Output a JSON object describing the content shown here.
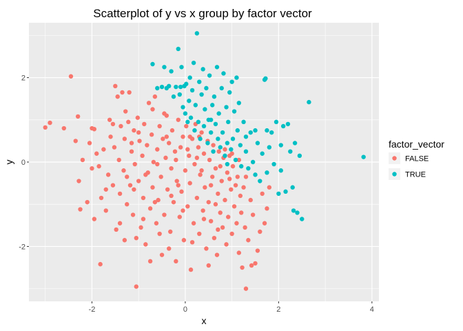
{
  "chart_data": {
    "type": "scatter",
    "title": "Scatterplot of y vs x group by factor vector",
    "xlabel": "x",
    "ylabel": "y",
    "xlim": [
      -3.35,
      4.15
    ],
    "ylim": [
      -3.3,
      3.3
    ],
    "x_ticks": [
      -2,
      0,
      2,
      4
    ],
    "x_tick_labels": [
      "-2",
      "0",
      "2",
      "4"
    ],
    "y_ticks": [
      -2,
      0,
      2
    ],
    "y_tick_labels": [
      "-2",
      "0",
      "2"
    ],
    "grid": true,
    "panel_background": "#ebebeb",
    "grid_color": "#ffffff",
    "legend": {
      "title": "factor_vector",
      "placement": "right"
    },
    "series": [
      {
        "name": "FALSE",
        "color": "#F8766D",
        "points": [
          [
            -3.0,
            0.82
          ],
          [
            -2.9,
            0.93
          ],
          [
            -2.6,
            0.8
          ],
          [
            -2.45,
            2.03
          ],
          [
            -2.35,
            0.5
          ],
          [
            -2.3,
            1.08
          ],
          [
            -2.28,
            -0.45
          ],
          [
            -2.25,
            -1.12
          ],
          [
            -2.2,
            0.05
          ],
          [
            -2.1,
            -0.95
          ],
          [
            -2.05,
            0.45
          ],
          [
            -2.0,
            0.8
          ],
          [
            -1.95,
            0.78
          ],
          [
            -1.95,
            -1.35
          ],
          [
            -1.9,
            0.2
          ],
          [
            -1.85,
            -0.1
          ],
          [
            -1.82,
            -2.42
          ],
          [
            -1.8,
            -0.85
          ],
          [
            -1.75,
            0.3
          ],
          [
            -1.7,
            -1.15
          ],
          [
            -1.65,
            -0.3
          ],
          [
            -1.62,
            1.0
          ],
          [
            -1.6,
            0.6
          ],
          [
            -1.55,
            -0.55
          ],
          [
            -1.52,
            0.35
          ],
          [
            -1.5,
            1.8
          ],
          [
            -1.48,
            -1.6
          ],
          [
            -1.45,
            1.55
          ],
          [
            -1.42,
            0.05
          ],
          [
            -1.4,
            -0.75
          ],
          [
            -1.38,
            0.85
          ],
          [
            -1.35,
            1.65
          ],
          [
            -1.32,
            -0.2
          ],
          [
            -1.3,
            0.55
          ],
          [
            -1.28,
            1.2
          ],
          [
            -1.25,
            -1.0
          ],
          [
            -1.22,
            0.95
          ],
          [
            -1.2,
            1.65
          ],
          [
            -1.18,
            -0.55
          ],
          [
            -1.15,
            0.25
          ],
          [
            -1.12,
            -1.25
          ],
          [
            -1.1,
            0.75
          ],
          [
            -1.08,
            -0.05
          ],
          [
            -1.05,
            -1.8
          ],
          [
            -1.05,
            -2.95
          ],
          [
            -1.02,
            1.05
          ],
          [
            -1.0,
            -0.45
          ],
          [
            -0.98,
            0.5
          ],
          [
            -0.95,
            -1.55
          ],
          [
            -0.92,
            0.15
          ],
          [
            -0.9,
            -0.85
          ],
          [
            -0.88,
            0.9
          ],
          [
            -0.85,
            -1.95
          ],
          [
            -0.82,
            0.4
          ],
          [
            -0.8,
            -0.25
          ],
          [
            -0.78,
            1.4
          ],
          [
            -0.75,
            -1.1
          ],
          [
            -0.72,
            0.65
          ],
          [
            -0.7,
            -0.6
          ],
          [
            -0.68,
            0.0
          ],
          [
            -0.65,
            1.55
          ],
          [
            -0.62,
            -1.45
          ],
          [
            -0.6,
            0.3
          ],
          [
            -0.58,
            -0.9
          ],
          [
            -0.55,
            0.85
          ],
          [
            -0.52,
            -0.35
          ],
          [
            -0.5,
            -2.2
          ],
          [
            -0.48,
            0.55
          ],
          [
            -0.45,
            -1.25
          ],
          [
            -0.42,
            0.1
          ],
          [
            -0.4,
            1.1
          ],
          [
            -0.38,
            -0.65
          ],
          [
            -0.35,
            0.45
          ],
          [
            -0.32,
            -1.65
          ],
          [
            -0.3,
            -0.15
          ],
          [
            -0.28,
            0.75
          ],
          [
            -0.25,
            -0.95
          ],
          [
            -0.22,
            0.25
          ],
          [
            -0.2,
            -2.35
          ],
          [
            -0.18,
            -0.45
          ],
          [
            -0.15,
            1.0
          ],
          [
            -0.12,
            -1.3
          ],
          [
            -0.1,
            0.35
          ],
          [
            -0.08,
            -0.7
          ],
          [
            -0.05,
            0.6
          ],
          [
            -0.03,
            -1.85
          ],
          [
            0.0,
            -0.2
          ],
          [
            0.02,
            0.85
          ],
          [
            0.05,
            -1.05
          ],
          [
            0.08,
            0.15
          ],
          [
            0.1,
            -0.5
          ],
          [
            0.12,
            -2.55
          ],
          [
            0.15,
            0.55
          ],
          [
            0.18,
            -1.45
          ],
          [
            0.2,
            -0.05
          ],
          [
            0.22,
            0.9
          ],
          [
            0.25,
            -0.85
          ],
          [
            0.28,
            0.35
          ],
          [
            0.3,
            -1.7
          ],
          [
            0.32,
            -0.3
          ],
          [
            0.35,
            0.7
          ],
          [
            0.38,
            -1.15
          ],
          [
            0.4,
            0.2
          ],
          [
            0.42,
            -0.6
          ],
          [
            0.45,
            -2.05
          ],
          [
            0.48,
            0.5
          ],
          [
            0.5,
            -0.95
          ],
          [
            0.52,
            0.05
          ],
          [
            0.55,
            -1.4
          ],
          [
            0.58,
            -0.35
          ],
          [
            0.6,
            0.4
          ],
          [
            0.62,
            -1.8
          ],
          [
            0.65,
            -0.15
          ],
          [
            0.68,
            -2.2
          ],
          [
            0.7,
            -0.75
          ],
          [
            0.72,
            0.25
          ],
          [
            0.75,
            -1.2
          ],
          [
            0.78,
            -0.45
          ],
          [
            0.8,
            -1.55
          ],
          [
            0.82,
            0.1
          ],
          [
            0.85,
            -0.9
          ],
          [
            0.88,
            -1.95
          ],
          [
            0.9,
            -0.25
          ],
          [
            0.92,
            -1.3
          ],
          [
            0.95,
            0.15
          ],
          [
            0.98,
            -0.65
          ],
          [
            1.0,
            -1.7
          ],
          [
            1.02,
            -0.1
          ],
          [
            1.05,
            -1.05
          ],
          [
            1.08,
            -0.55
          ],
          [
            1.1,
            -1.45
          ],
          [
            1.12,
            -0.35
          ],
          [
            1.15,
            -2.15
          ],
          [
            1.18,
            -0.8
          ],
          [
            1.2,
            -1.2
          ],
          [
            1.22,
            -2.5
          ],
          [
            1.25,
            -0.6
          ],
          [
            1.28,
            -1.55
          ],
          [
            1.3,
            -3.0
          ],
          [
            1.35,
            -1.85
          ],
          [
            1.4,
            -0.9
          ],
          [
            1.42,
            -2.45
          ],
          [
            1.45,
            -1.25
          ],
          [
            1.5,
            -2.4
          ],
          [
            1.55,
            -2.1
          ],
          [
            1.6,
            -1.65
          ],
          [
            1.65,
            -0.75
          ],
          [
            1.7,
            -1.45
          ],
          [
            1.75,
            -1.1
          ],
          [
            1.8,
            -0.6
          ],
          [
            -1.0,
            0.7
          ],
          [
            -0.6,
            -0.05
          ],
          [
            -0.3,
            -0.8
          ],
          [
            0.1,
            0.6
          ],
          [
            0.35,
            -0.2
          ],
          [
            -0.85,
            -0.3
          ],
          [
            -0.45,
            1.15
          ],
          [
            0.55,
            -0.55
          ],
          [
            -1.25,
            -0.35
          ],
          [
            0.75,
            -0.1
          ],
          [
            -0.2,
            0.05
          ],
          [
            0.05,
            0.3
          ],
          [
            -0.65,
            -0.95
          ],
          [
            0.4,
            -1.35
          ],
          [
            -1.4,
            -1.45
          ],
          [
            1.15,
            0.05
          ],
          [
            -0.05,
            -1.15
          ],
          [
            0.65,
            -1.0
          ],
          [
            -0.9,
            -1.35
          ],
          [
            0.25,
            0.1
          ],
          [
            -1.7,
            -0.65
          ],
          [
            -1.1,
            -0.65
          ],
          [
            -0.55,
            -1.7
          ],
          [
            0.85,
            0.3
          ],
          [
            1.0,
            0.2
          ],
          [
            -0.35,
            -2.05
          ],
          [
            0.15,
            -1.9
          ],
          [
            -1.55,
            0.9
          ],
          [
            -0.75,
            -2.35
          ],
          [
            0.5,
            -2.45
          ],
          [
            -2.0,
            -0.15
          ],
          [
            -1.3,
            -1.85
          ],
          [
            0.3,
            0.6
          ],
          [
            -0.15,
            -0.55
          ],
          [
            -0.4,
            0.6
          ],
          [
            1.3,
            -0.35
          ],
          [
            0.95,
            -0.4
          ],
          [
            -0.7,
            1.25
          ],
          [
            -1.15,
            0.45
          ],
          [
            0.7,
            -1.6
          ]
        ]
      },
      {
        "name": "TRUE",
        "color": "#00BFC4",
        "points": [
          [
            -0.7,
            2.32
          ],
          [
            -0.6,
            1.75
          ],
          [
            -0.5,
            1.78
          ],
          [
            -0.45,
            2.25
          ],
          [
            -0.4,
            1.75
          ],
          [
            -0.35,
            1.8
          ],
          [
            -0.3,
            2.15
          ],
          [
            -0.25,
            1.55
          ],
          [
            -0.2,
            1.78
          ],
          [
            -0.15,
            2.68
          ],
          [
            -0.12,
            1.6
          ],
          [
            -0.1,
            1.78
          ],
          [
            -0.08,
            2.25
          ],
          [
            -0.05,
            1.3
          ],
          [
            -0.02,
            1.8
          ],
          [
            0.0,
            1.15
          ],
          [
            0.02,
            1.85
          ],
          [
            0.05,
            0.95
          ],
          [
            0.08,
            1.45
          ],
          [
            0.1,
            2.0
          ],
          [
            0.12,
            1.05
          ],
          [
            0.15,
            1.7
          ],
          [
            0.18,
            2.35
          ],
          [
            0.2,
            0.75
          ],
          [
            0.22,
            1.35
          ],
          [
            0.25,
            3.05
          ],
          [
            0.28,
            0.95
          ],
          [
            0.3,
            1.9
          ],
          [
            0.32,
            0.55
          ],
          [
            0.35,
            1.6
          ],
          [
            0.38,
            2.2
          ],
          [
            0.4,
            0.85
          ],
          [
            0.42,
            1.25
          ],
          [
            0.45,
            1.75
          ],
          [
            0.48,
            0.45
          ],
          [
            0.5,
            1.0
          ],
          [
            0.52,
            2.05
          ],
          [
            0.55,
            0.7
          ],
          [
            0.58,
            1.35
          ],
          [
            0.6,
            0.25
          ],
          [
            0.62,
            1.55
          ],
          [
            0.65,
            0.9
          ],
          [
            0.68,
            2.25
          ],
          [
            0.7,
            0.55
          ],
          [
            0.72,
            1.15
          ],
          [
            0.75,
            0.35
          ],
          [
            0.78,
            1.75
          ],
          [
            0.8,
            0.7
          ],
          [
            0.82,
            2.1
          ],
          [
            0.85,
            0.15
          ],
          [
            0.88,
            1.3
          ],
          [
            0.9,
            0.45
          ],
          [
            0.92,
            0.95
          ],
          [
            0.95,
            1.65
          ],
          [
            0.98,
            0.3
          ],
          [
            1.0,
            1.9
          ],
          [
            1.02,
            0.55
          ],
          [
            1.05,
            1.2
          ],
          [
            1.08,
            0.05
          ],
          [
            1.1,
            2.0
          ],
          [
            1.12,
            0.75
          ],
          [
            1.15,
            1.4
          ],
          [
            1.18,
            0.4
          ],
          [
            1.2,
            -0.1
          ],
          [
            1.25,
            0.95
          ],
          [
            1.3,
            0.25
          ],
          [
            1.35,
            -0.15
          ],
          [
            1.4,
            0.7
          ],
          [
            1.45,
            0.0
          ],
          [
            1.5,
            -0.3
          ],
          [
            1.55,
            0.45
          ],
          [
            1.6,
            -0.45
          ],
          [
            1.65,
            0.2
          ],
          [
            1.7,
            1.95
          ],
          [
            1.72,
            1.98
          ],
          [
            1.75,
            -0.25
          ],
          [
            1.8,
            0.35
          ],
          [
            1.85,
            0.7
          ],
          [
            1.9,
            -0.05
          ],
          [
            1.95,
            0.95
          ],
          [
            2.0,
            -0.75
          ],
          [
            2.05,
            0.4
          ],
          [
            2.1,
            0.85
          ],
          [
            2.15,
            -0.7
          ],
          [
            2.2,
            0.9
          ],
          [
            2.25,
            0.25
          ],
          [
            2.3,
            -0.6
          ],
          [
            2.32,
            -1.15
          ],
          [
            2.35,
            0.45
          ],
          [
            2.4,
            -1.2
          ],
          [
            2.45,
            0.15
          ],
          [
            2.5,
            -1.35
          ],
          [
            2.65,
            1.42
          ],
          [
            3.82,
            0.12
          ],
          [
            1.75,
            0.75
          ],
          [
            1.5,
            0.75
          ],
          [
            0.55,
            1.0
          ],
          [
            1.3,
            0.6
          ],
          [
            0.9,
            -0.05
          ],
          [
            2.05,
            -0.2
          ]
        ]
      }
    ]
  }
}
